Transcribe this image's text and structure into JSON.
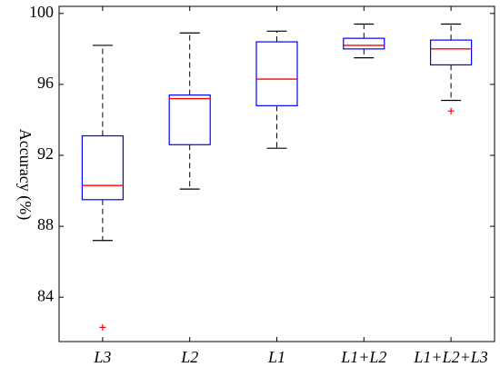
{
  "chart_data": {
    "type": "box",
    "title": "",
    "xlabel": "",
    "ylabel": "Accuracy (%)",
    "ylim": [
      81.5,
      100.4
    ],
    "yticks": [
      84,
      88,
      92,
      96,
      100
    ],
    "ytick_labels": [
      "84",
      "88",
      "92",
      "96",
      "100"
    ],
    "grid": false,
    "categories": [
      "L3",
      "L2",
      "L1",
      "L1+L2",
      "L1+L2+L3"
    ],
    "boxes": [
      {
        "label": "L3",
        "whisker_low": 87.2,
        "q1": 89.5,
        "median": 90.3,
        "q3": 93.1,
        "whisker_high": 98.2,
        "outliers": [
          82.3
        ]
      },
      {
        "label": "L2",
        "whisker_low": 90.1,
        "q1": 92.6,
        "median": 95.2,
        "q3": 95.4,
        "whisker_high": 98.9,
        "outliers": []
      },
      {
        "label": "L1",
        "whisker_low": 92.4,
        "q1": 94.8,
        "median": 96.3,
        "q3": 98.4,
        "whisker_high": 99.0,
        "outliers": []
      },
      {
        "label": "L1+L2",
        "whisker_low": 97.5,
        "q1": 98.0,
        "median": 98.2,
        "q3": 98.6,
        "whisker_high": 99.4,
        "outliers": []
      },
      {
        "label": "L1+L2+L3",
        "whisker_low": 95.1,
        "q1": 97.1,
        "median": 98.0,
        "q3": 98.5,
        "whisker_high": 99.4,
        "outliers": [
          94.5
        ]
      }
    ],
    "colors": {
      "box": "#0000ff",
      "median": "#ff0000",
      "whisker": "#000000",
      "outlier": "#ff0000",
      "axis": "#000000"
    }
  }
}
